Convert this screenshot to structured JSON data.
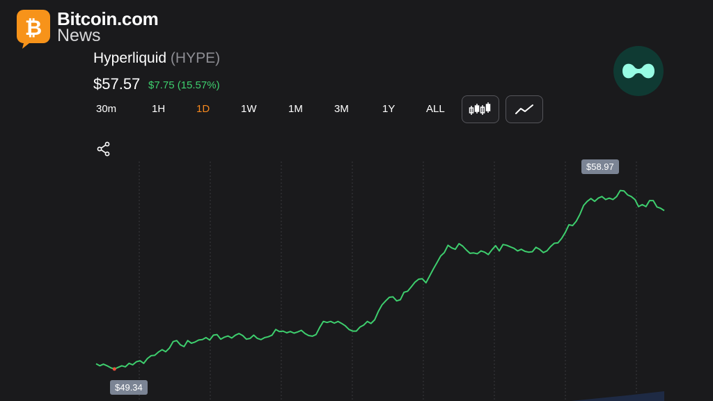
{
  "watermark": {
    "title": "Bitcoin.com",
    "subtitle": "News",
    "badge_icon": "bitcoin-icon",
    "badge_color": "#f7931a"
  },
  "coin": {
    "name": "Hyperliquid",
    "ticker": "(HYPE)",
    "price": "$57.57",
    "change": "$7.75 (15.57%)",
    "change_color": "#3ecf6e",
    "logo_icon": "hyperliquid-logo-icon",
    "logo_color": "#97fce4"
  },
  "timeframes": {
    "active": "1D",
    "active_color": "#f7891e",
    "items": [
      "30m",
      "1H",
      "1D",
      "1W",
      "1M",
      "3M",
      "1Y",
      "ALL"
    ]
  },
  "chart_toggles": [
    {
      "icon": "candlestick-chart-icon"
    },
    {
      "icon": "line-chart-icon"
    }
  ],
  "share_icon": "share-icon",
  "chart_data": {
    "type": "line",
    "line_color": "#3ecf6e",
    "low_marker_color": "#e8503a",
    "min_label": "$49.34",
    "max_label": "$58.97",
    "ylim": [
      49.1,
      59.05
    ],
    "grid": "vertical dashed",
    "series": [
      {
        "values": [
          49.6,
          49.5,
          49.58,
          49.5,
          49.4,
          49.34,
          49.42,
          49.5,
          49.45,
          49.62,
          49.55,
          49.7,
          49.75,
          49.62,
          49.86,
          50.0,
          50.02,
          50.18,
          50.3,
          50.2,
          50.38,
          50.7,
          50.75,
          50.54,
          50.45,
          50.75,
          50.62,
          50.68,
          50.78,
          50.8,
          50.9,
          50.78,
          51.02,
          51.05,
          50.82,
          50.92,
          50.98,
          50.88,
          51.02,
          51.1,
          51.0,
          50.82,
          50.86,
          51.02,
          50.86,
          50.8,
          50.9,
          50.94,
          51.02,
          51.3,
          51.2,
          51.22,
          51.14,
          51.2,
          51.12,
          51.18,
          51.26,
          51.1,
          51.0,
          50.97,
          51.05,
          51.4,
          51.7,
          51.65,
          51.7,
          51.62,
          51.7,
          51.6,
          51.48,
          51.3,
          51.22,
          51.22,
          51.42,
          51.52,
          51.7,
          51.6,
          51.78,
          52.2,
          52.52,
          52.72,
          52.9,
          52.92,
          52.72,
          52.78,
          53.15,
          53.2,
          53.42,
          53.65,
          53.8,
          53.82,
          53.62,
          53.96,
          54.3,
          54.62,
          54.95,
          55.12,
          55.48,
          55.35,
          55.28,
          55.56,
          55.44,
          55.25,
          55.08,
          55.1,
          55.06,
          55.2,
          55.14,
          55.02,
          55.26,
          55.46,
          55.2,
          55.52,
          55.48,
          55.4,
          55.33,
          55.2,
          55.28,
          55.18,
          55.14,
          55.16,
          55.38,
          55.28,
          55.12,
          55.2,
          55.42,
          55.58,
          55.6,
          55.82,
          56.12,
          56.5,
          56.46,
          56.68,
          57.02,
          57.46,
          57.66,
          57.8,
          57.66,
          57.82,
          57.9,
          57.75,
          57.82,
          57.75,
          57.9,
          58.2,
          58.18,
          57.98,
          57.9,
          57.75,
          57.4,
          57.5,
          57.4,
          57.7,
          57.7,
          57.38,
          57.32,
          57.2
        ],
        "x_range": [
          0,
          154
        ]
      }
    ]
  }
}
